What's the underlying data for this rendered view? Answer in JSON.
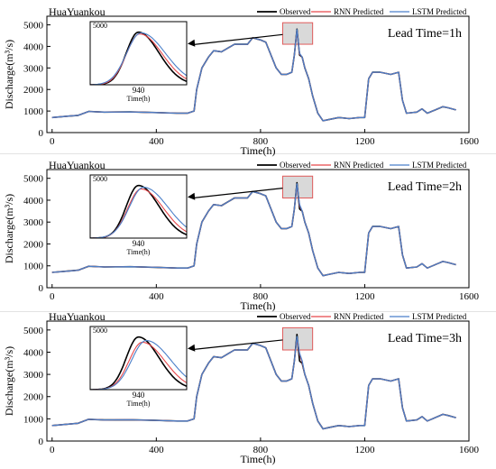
{
  "colors": {
    "observed": "#000000",
    "rnn": "#e8474b",
    "lstm": "#4a7fc9",
    "highlight_fill": "#d9d9d9",
    "highlight_border": "#e05a5a",
    "panel_separator": "#e3e3e3"
  },
  "shared": {
    "station": "HuaYuankou",
    "xlabel": "Time(h)",
    "ylabel": "Discharge(m³/s)",
    "x_ticks": [
      "0",
      "400",
      "800",
      "1200",
      "1600"
    ],
    "y_ticks": [
      "0",
      "1000",
      "2000",
      "3000",
      "4000",
      "5000"
    ],
    "legend": [
      "Observed",
      "RNN   Predicted",
      "LSTM   Predicted"
    ],
    "inset_tick_y": "5000",
    "inset_tick_x": "940",
    "inset_xlabel": "Time(h)"
  },
  "chart_data": [
    {
      "type": "line",
      "title": "HuaYuankou",
      "annotation": "Lead Time=1h",
      "xlabel": "Time(h)",
      "ylabel": "Discharge(m³/s)",
      "xlim": [
        -20,
        1600
      ],
      "ylim": [
        0,
        5400
      ],
      "grid": false,
      "legend_position": "top",
      "zoom_region": {
        "x": [
          885,
          1000
        ],
        "y": [
          4100,
          5100
        ]
      },
      "series": [
        {
          "name": "Observed",
          "x": [
            0,
            60,
            100,
            140,
            200,
            300,
            400,
            480,
            520,
            545,
            555,
            575,
            600,
            620,
            650,
            700,
            750,
            770,
            800,
            820,
            860,
            880,
            900,
            920,
            930,
            940,
            950,
            960,
            970,
            985,
            1000,
            1020,
            1040,
            1060,
            1100,
            1140,
            1180,
            1200,
            1215,
            1230,
            1260,
            1300,
            1330,
            1345,
            1360,
            1400,
            1420,
            1440,
            1480,
            1500,
            1520,
            1550
          ],
          "y": [
            700,
            760,
            800,
            980,
            950,
            960,
            930,
            900,
            900,
            1000,
            2000,
            3000,
            3500,
            3800,
            3750,
            4100,
            4100,
            4400,
            4300,
            4200,
            3000,
            2700,
            2700,
            2800,
            3600,
            4800,
            3600,
            3500,
            3000,
            2500,
            1700,
            900,
            550,
            600,
            700,
            650,
            700,
            700,
            2500,
            2800,
            2800,
            2700,
            2800,
            1500,
            900,
            950,
            1100,
            900,
            1100,
            1200,
            1150,
            1050
          ]
        },
        {
          "name": "RNN Predicted",
          "x": [
            0,
            60,
            100,
            140,
            200,
            300,
            400,
            480,
            520,
            545,
            555,
            575,
            600,
            620,
            650,
            700,
            750,
            770,
            800,
            820,
            860,
            880,
            900,
            920,
            930,
            940,
            950,
            960,
            970,
            985,
            1000,
            1020,
            1040,
            1060,
            1100,
            1140,
            1180,
            1200,
            1215,
            1230,
            1260,
            1300,
            1330,
            1345,
            1360,
            1400,
            1420,
            1440,
            1480,
            1500,
            1520,
            1550
          ],
          "y": [
            700,
            760,
            800,
            980,
            950,
            960,
            930,
            900,
            900,
            1000,
            2000,
            3000,
            3500,
            3800,
            3750,
            4100,
            4100,
            4400,
            4300,
            4200,
            3000,
            2700,
            2700,
            2800,
            3600,
            4750,
            3650,
            3500,
            3000,
            2500,
            1700,
            900,
            550,
            600,
            700,
            650,
            700,
            700,
            2500,
            2800,
            2800,
            2700,
            2800,
            1500,
            900,
            950,
            1100,
            900,
            1100,
            1200,
            1150,
            1050
          ]
        },
        {
          "name": "LSTM Predicted",
          "x": [
            0,
            60,
            100,
            140,
            200,
            300,
            400,
            480,
            520,
            545,
            555,
            575,
            600,
            620,
            650,
            700,
            750,
            770,
            800,
            820,
            860,
            880,
            900,
            920,
            930,
            940,
            950,
            960,
            970,
            985,
            1000,
            1020,
            1040,
            1060,
            1100,
            1140,
            1180,
            1200,
            1215,
            1230,
            1260,
            1300,
            1330,
            1345,
            1360,
            1400,
            1420,
            1440,
            1480,
            1500,
            1520,
            1550
          ],
          "y": [
            700,
            760,
            800,
            980,
            950,
            960,
            930,
            900,
            900,
            1000,
            2000,
            3000,
            3500,
            3800,
            3750,
            4100,
            4100,
            4400,
            4300,
            4200,
            3000,
            2700,
            2700,
            2800,
            3600,
            4780,
            3680,
            3500,
            3000,
            2500,
            1700,
            900,
            550,
            600,
            700,
            650,
            700,
            700,
            2500,
            2800,
            2800,
            2700,
            2800,
            1500,
            900,
            950,
            1100,
            900,
            1100,
            1200,
            1150,
            1050
          ]
        }
      ]
    },
    {
      "type": "line",
      "title": "HuaYuankou",
      "annotation": "Lead Time=2h",
      "xlabel": "Time(h)",
      "ylabel": "Discharge(m³/s)",
      "xlim": [
        -20,
        1600
      ],
      "ylim": [
        0,
        5400
      ],
      "grid": false,
      "legend_position": "top",
      "zoom_region": {
        "x": [
          885,
          1000
        ],
        "y": [
          4100,
          5100
        ]
      },
      "series": [
        {
          "name": "Observed",
          "x": [
            0,
            60,
            100,
            140,
            200,
            300,
            400,
            480,
            520,
            545,
            555,
            575,
            600,
            620,
            650,
            700,
            750,
            770,
            800,
            820,
            860,
            880,
            900,
            920,
            930,
            940,
            950,
            960,
            970,
            985,
            1000,
            1020,
            1040,
            1060,
            1100,
            1140,
            1180,
            1200,
            1215,
            1230,
            1260,
            1300,
            1330,
            1345,
            1360,
            1400,
            1420,
            1440,
            1480,
            1500,
            1520,
            1550
          ],
          "y": [
            700,
            760,
            800,
            980,
            950,
            960,
            930,
            900,
            900,
            1000,
            2000,
            3000,
            3500,
            3800,
            3750,
            4100,
            4100,
            4400,
            4300,
            4200,
            3000,
            2700,
            2700,
            2800,
            3600,
            4800,
            3600,
            3500,
            3000,
            2500,
            1700,
            900,
            550,
            600,
            700,
            650,
            700,
            700,
            2500,
            2800,
            2800,
            2700,
            2800,
            1500,
            900,
            950,
            1100,
            900,
            1100,
            1200,
            1150,
            1050
          ]
        },
        {
          "name": "RNN Predicted",
          "x": [
            0,
            60,
            100,
            140,
            200,
            300,
            400,
            480,
            520,
            545,
            555,
            575,
            600,
            620,
            650,
            700,
            750,
            770,
            800,
            820,
            860,
            880,
            900,
            920,
            930,
            940,
            950,
            960,
            970,
            985,
            1000,
            1020,
            1040,
            1060,
            1100,
            1140,
            1180,
            1200,
            1215,
            1230,
            1260,
            1300,
            1330,
            1345,
            1360,
            1400,
            1420,
            1440,
            1480,
            1500,
            1520,
            1550
          ],
          "y": [
            700,
            760,
            800,
            980,
            950,
            960,
            930,
            900,
            900,
            1000,
            2000,
            3000,
            3500,
            3800,
            3750,
            4100,
            4100,
            4400,
            4300,
            4200,
            3000,
            2700,
            2700,
            2800,
            3600,
            4700,
            3750,
            3500,
            3000,
            2500,
            1700,
            900,
            550,
            600,
            700,
            650,
            700,
            700,
            2500,
            2800,
            2800,
            2700,
            2800,
            1500,
            900,
            950,
            1100,
            900,
            1100,
            1200,
            1150,
            1050
          ]
        },
        {
          "name": "LSTM Predicted",
          "x": [
            0,
            60,
            100,
            140,
            200,
            300,
            400,
            480,
            520,
            545,
            555,
            575,
            600,
            620,
            650,
            700,
            750,
            770,
            800,
            820,
            860,
            880,
            900,
            920,
            930,
            940,
            950,
            960,
            970,
            985,
            1000,
            1020,
            1040,
            1060,
            1100,
            1140,
            1180,
            1200,
            1215,
            1230,
            1260,
            1300,
            1330,
            1345,
            1360,
            1400,
            1420,
            1440,
            1480,
            1500,
            1520,
            1550
          ],
          "y": [
            700,
            760,
            800,
            980,
            950,
            960,
            930,
            900,
            900,
            1000,
            2000,
            3000,
            3500,
            3800,
            3750,
            4100,
            4100,
            4400,
            4300,
            4200,
            3000,
            2700,
            2700,
            2800,
            3600,
            4750,
            3800,
            3500,
            3000,
            2500,
            1700,
            900,
            550,
            600,
            700,
            650,
            700,
            700,
            2500,
            2800,
            2800,
            2700,
            2800,
            1500,
            900,
            950,
            1100,
            900,
            1100,
            1200,
            1150,
            1050
          ]
        }
      ]
    },
    {
      "type": "line",
      "title": "HuaYuankou",
      "annotation": "Lead Time=3h",
      "xlabel": "Time(h)",
      "ylabel": "Discharge(m³/s)",
      "xlim": [
        -20,
        1600
      ],
      "ylim": [
        0,
        5400
      ],
      "grid": false,
      "legend_position": "top",
      "zoom_region": {
        "x": [
          885,
          1000
        ],
        "y": [
          4100,
          5100
        ]
      },
      "series": [
        {
          "name": "Observed",
          "x": [
            0,
            60,
            100,
            140,
            200,
            300,
            400,
            480,
            520,
            545,
            555,
            575,
            600,
            620,
            650,
            700,
            750,
            770,
            800,
            820,
            860,
            880,
            900,
            920,
            930,
            940,
            950,
            960,
            970,
            985,
            1000,
            1020,
            1040,
            1060,
            1100,
            1140,
            1180,
            1200,
            1215,
            1230,
            1260,
            1300,
            1330,
            1345,
            1360,
            1400,
            1420,
            1440,
            1480,
            1500,
            1520,
            1550
          ],
          "y": [
            700,
            760,
            800,
            980,
            950,
            960,
            930,
            900,
            900,
            1000,
            2000,
            3000,
            3500,
            3800,
            3750,
            4100,
            4100,
            4400,
            4300,
            4200,
            3000,
            2700,
            2700,
            2800,
            3600,
            4800,
            3600,
            3500,
            3000,
            2500,
            1700,
            900,
            550,
            600,
            700,
            650,
            700,
            700,
            2500,
            2800,
            2800,
            2700,
            2800,
            1500,
            900,
            950,
            1100,
            900,
            1100,
            1200,
            1150,
            1050
          ]
        },
        {
          "name": "RNN Predicted",
          "x": [
            0,
            60,
            100,
            140,
            200,
            300,
            400,
            480,
            520,
            545,
            555,
            575,
            600,
            620,
            650,
            700,
            750,
            770,
            800,
            820,
            860,
            880,
            900,
            920,
            930,
            940,
            950,
            960,
            970,
            985,
            1000,
            1020,
            1040,
            1060,
            1100,
            1140,
            1180,
            1200,
            1215,
            1230,
            1260,
            1300,
            1330,
            1345,
            1360,
            1400,
            1420,
            1440,
            1480,
            1500,
            1520,
            1550
          ],
          "y": [
            700,
            760,
            800,
            980,
            950,
            960,
            930,
            900,
            900,
            1000,
            2000,
            3000,
            3500,
            3800,
            3750,
            4100,
            4100,
            4400,
            4300,
            4200,
            3000,
            2700,
            2700,
            2800,
            3600,
            4650,
            3900,
            3550,
            3000,
            2500,
            1700,
            900,
            550,
            600,
            700,
            650,
            700,
            700,
            2500,
            2800,
            2800,
            2700,
            2800,
            1500,
            900,
            950,
            1100,
            900,
            1100,
            1200,
            1150,
            1050
          ]
        },
        {
          "name": "LSTM Predicted",
          "x": [
            0,
            60,
            100,
            140,
            200,
            300,
            400,
            480,
            520,
            545,
            555,
            575,
            600,
            620,
            650,
            700,
            750,
            770,
            800,
            820,
            860,
            880,
            900,
            920,
            930,
            940,
            950,
            960,
            970,
            985,
            1000,
            1020,
            1040,
            1060,
            1100,
            1140,
            1180,
            1200,
            1215,
            1230,
            1260,
            1300,
            1330,
            1345,
            1360,
            1400,
            1420,
            1440,
            1480,
            1500,
            1520,
            1550
          ],
          "y": [
            700,
            760,
            800,
            980,
            950,
            960,
            930,
            900,
            900,
            1000,
            2000,
            3000,
            3500,
            3800,
            3750,
            4100,
            4100,
            4400,
            4300,
            4200,
            3000,
            2700,
            2700,
            2800,
            3600,
            4700,
            3950,
            3600,
            3000,
            2500,
            1700,
            900,
            550,
            600,
            700,
            650,
            700,
            700,
            2500,
            2800,
            2800,
            2700,
            2800,
            1500,
            900,
            950,
            1100,
            900,
            1100,
            1200,
            1150,
            1050
          ]
        }
      ]
    }
  ]
}
